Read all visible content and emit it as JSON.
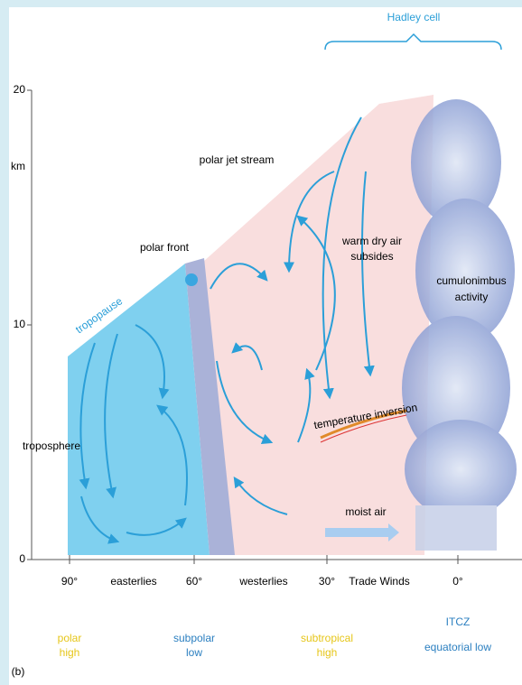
{
  "header": {
    "title": "Hadley cell"
  },
  "axis": {
    "unit": "km",
    "ticks": [
      "20",
      "10",
      "0"
    ]
  },
  "latitudes": [
    "90°",
    "60°",
    "30°",
    "0°"
  ],
  "winds": [
    "easterlies",
    "westerlies",
    "Trade Winds"
  ],
  "pressure_zones": [
    {
      "lines": [
        "polar",
        "high"
      ]
    },
    {
      "lines": [
        "subpolar",
        "low"
      ]
    },
    {
      "lines": [
        "subtropical",
        "high"
      ]
    },
    {
      "lines": [
        "ITCZ",
        "equatorial low"
      ]
    }
  ],
  "annotations": {
    "jet": "polar jet stream",
    "front": "polar front",
    "tropopause": "tropopause",
    "troposphere": "troposphere",
    "subsides": {
      "lines": [
        "warm dry air",
        "subsides"
      ]
    },
    "cumulonimbus": {
      "lines": [
        "cumulonimbus",
        "activity"
      ]
    },
    "inversion": "temperature inversion",
    "moist": "moist air"
  },
  "panel_label": "(b)"
}
